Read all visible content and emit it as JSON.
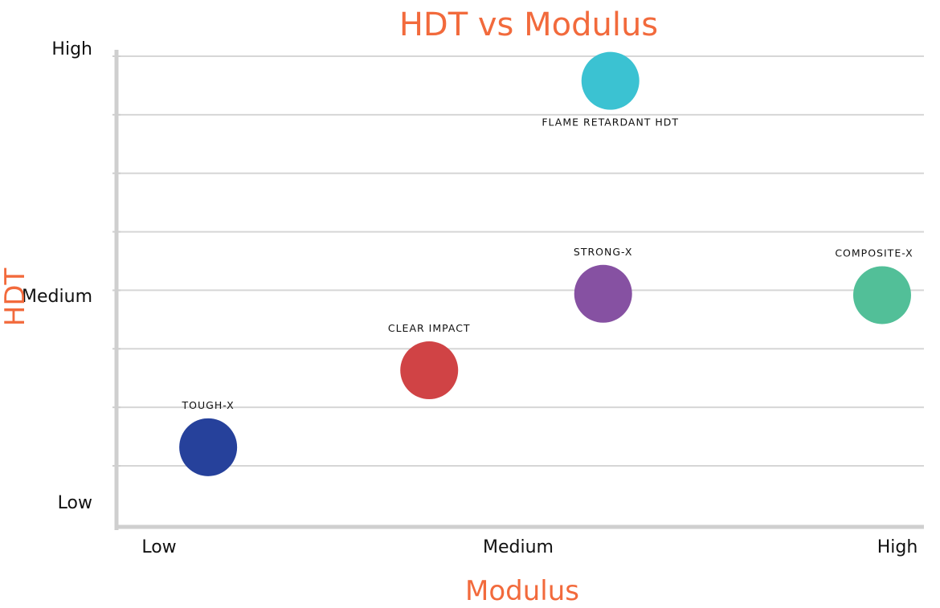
{
  "chart_data": {
    "type": "scatter",
    "title": "HDT vs Modulus",
    "xlabel": "Modulus",
    "ylabel": "HDT",
    "xlim": [
      0,
      1
    ],
    "ylim": [
      0,
      1
    ],
    "x_ticks": [
      "Low",
      "Medium",
      "High"
    ],
    "y_ticks": [
      "Low",
      "Medium",
      "High"
    ],
    "grid": true,
    "points": [
      {
        "label": "TOUGH-X",
        "x": 0.06,
        "y": 0.126,
        "color": "#26419b"
      },
      {
        "label": "CLEAR IMPACT",
        "x": 0.365,
        "y": 0.298,
        "color": "#d04345"
      },
      {
        "label": "STRONG-X",
        "x": 0.605,
        "y": 0.469,
        "color": "#8651a2"
      },
      {
        "label": "FLAME RETARDANT HDT",
        "x": 0.615,
        "y": 0.945,
        "color": "#3bc2d2"
      },
      {
        "label": "COMPOSITE-X",
        "x": 0.99,
        "y": 0.466,
        "color": "#52bf98"
      }
    ]
  }
}
